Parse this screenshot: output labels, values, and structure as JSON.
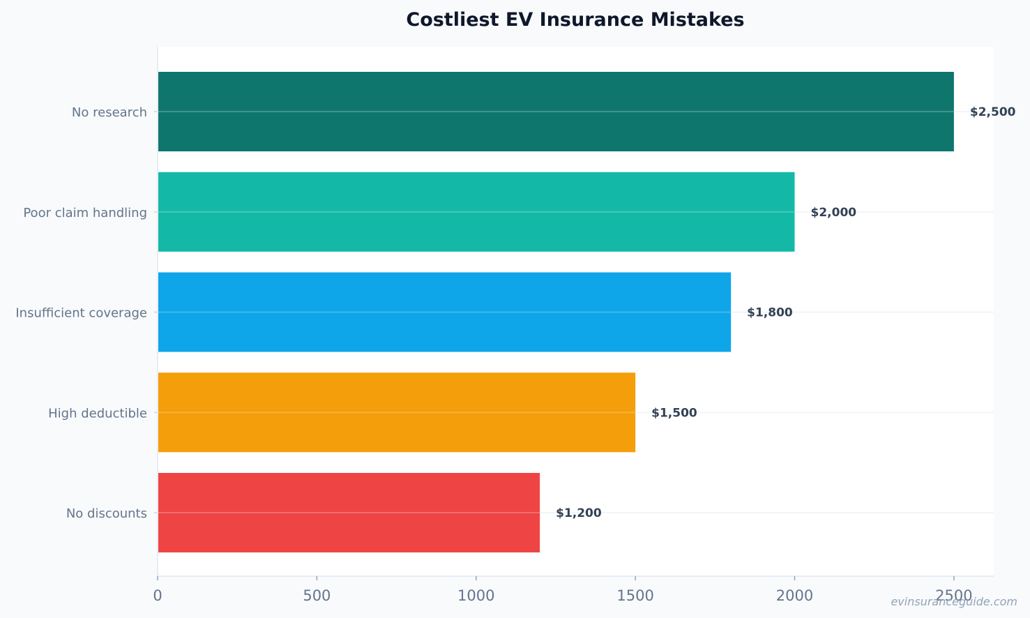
{
  "chart_data": {
    "type": "bar",
    "orientation": "horizontal",
    "title": "Costliest EV Insurance Mistakes",
    "categories": [
      "No research",
      "Poor claim handling",
      "Insufficient coverage",
      "High deductible",
      "No discounts"
    ],
    "values": [
      2500,
      2000,
      1800,
      1500,
      1200
    ],
    "value_labels": [
      "$2,500",
      "$2,000",
      "$1,800",
      "$1,500",
      "$1,200"
    ],
    "colors": [
      "#0f766e",
      "#14b8a6",
      "#0ea5e9",
      "#f59e0b",
      "#ef4444"
    ],
    "xlim": [
      0,
      2625
    ],
    "xticks": [
      0,
      500,
      1000,
      1500,
      2000,
      2500
    ],
    "xlabel": "",
    "ylabel": "",
    "grid": true
  },
  "watermark": "evinsuranceguide.com"
}
